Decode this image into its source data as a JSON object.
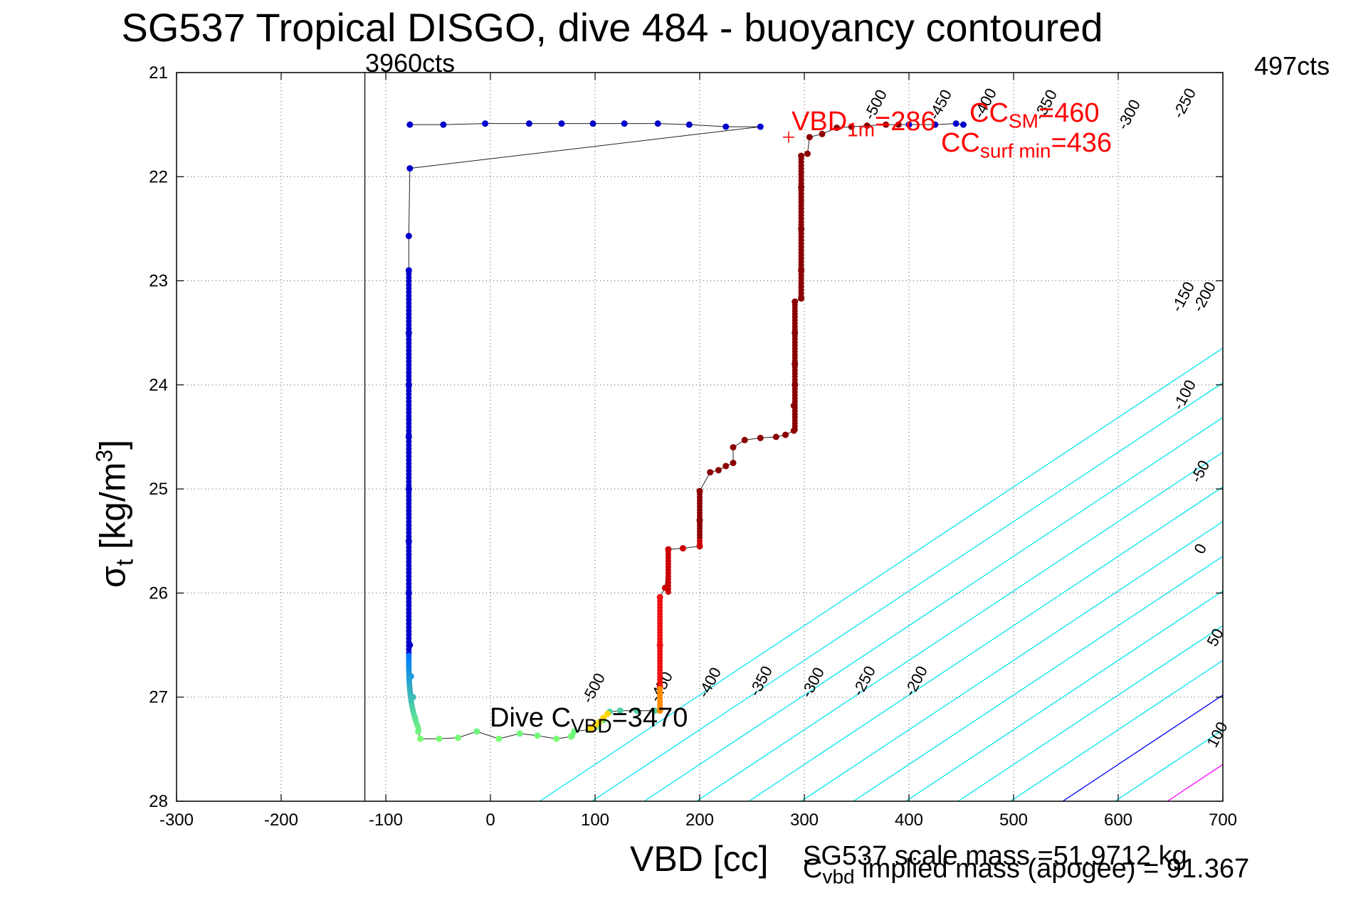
{
  "title": "SG537 Tropical DISGO, dive 484 - buoyancy contoured",
  "xlabel": "VBD [cc]",
  "ylabel": {
    "main": "σ",
    "sub": "t",
    "units_pre": " [kg/m",
    "units_sup": "3",
    "units_post": "]"
  },
  "notes": {
    "scale_mass": "SG537 scale mass =51.9712 kg",
    "implied_mass_pre": "C",
    "implied_mass_sub": "vbd",
    "implied_mass_post": " implied mass (apogee) = 91.367"
  },
  "cts_left": "3960cts",
  "cts_right": "497cts",
  "annotations": {
    "vbd1m_pre": "VBD",
    "vbd1m_sub": "1m",
    "vbd1m_post": "=286",
    "ccsm_pre": "CC",
    "ccsm_sub": "SM",
    "ccsm_post": "=460",
    "ccsurf_pre": "CC",
    "ccsurf_sub": "surf min",
    "ccsurf_post": "=436",
    "dive_pre": "Dive C",
    "dive_sub": "VBD",
    "dive_post": "=3470"
  },
  "colors": {
    "descent": "#0000cc",
    "contour": "#00e5ee",
    "zero_contour": "#0000ff",
    "pos_contour": "#ff00ff",
    "ascent": "#8b0000",
    "annotation": "#ff0000"
  },
  "chart_data": {
    "type": "scatter",
    "xlim": [
      -300,
      700
    ],
    "ylim": [
      21,
      28
    ],
    "y_reversed": true,
    "grid": true,
    "xticks": [
      -300,
      -200,
      -100,
      0,
      100,
      200,
      300,
      400,
      500,
      600,
      700
    ],
    "yticks": [
      21,
      22,
      23,
      24,
      25,
      26,
      27,
      28
    ],
    "vertical_line_x": -120,
    "vbd_1m_marker": [
      285,
      21.62
    ],
    "contours": [
      {
        "label": "-500",
        "x_at_28": 47,
        "x_at_21": null,
        "color": "contour"
      },
      {
        "label": "-450",
        "x_at_28": 97,
        "x_at_21": null,
        "color": "contour"
      },
      {
        "label": "-400",
        "x_at_28": 147,
        "x_at_21": null,
        "color": "contour"
      },
      {
        "label": "-350",
        "x_at_28": 197,
        "x_at_21": null,
        "color": "contour"
      },
      {
        "label": "-300",
        "x_at_28": 247,
        "x_at_21": null,
        "color": "contour"
      },
      {
        "label": "-250",
        "x_at_28": 297,
        "x_at_21": null,
        "color": "contour"
      },
      {
        "label": "-200",
        "x_at_28": 347,
        "x_at_21": null,
        "color": "contour"
      },
      {
        "label": "-150",
        "x_at_28": 397,
        "x_at_21": null,
        "color": "contour"
      },
      {
        "label": "-100",
        "x_at_28": 447,
        "x_at_21": null,
        "color": "contour"
      },
      {
        "label": "-50",
        "x_at_28": 497,
        "x_at_21": null,
        "color": "contour"
      },
      {
        "label": "0",
        "x_at_28": 547,
        "x_at_21": null,
        "color": "zero_contour"
      },
      {
        "label": "50",
        "x_at_28": 597,
        "x_at_21": null,
        "color": "contour"
      },
      {
        "label": "100",
        "x_at_28": 647,
        "x_at_21": null,
        "color": "pos_contour"
      }
    ],
    "contour_slope_cc_per_unit": 150,
    "descent": [
      [
        -77,
        21.5
      ],
      [
        -45,
        21.5
      ],
      [
        -5,
        21.49
      ],
      [
        37,
        21.49
      ],
      [
        68,
        21.49
      ],
      [
        98,
        21.49
      ],
      [
        128,
        21.49
      ],
      [
        160,
        21.49
      ],
      [
        190,
        21.5
      ],
      [
        225,
        21.52
      ],
      [
        258,
        21.52
      ],
      [
        -77,
        21.92
      ],
      [
        -78,
        22.57
      ],
      [
        -78,
        22.9
      ],
      [
        -78,
        23.5
      ],
      [
        -78,
        24.0
      ],
      [
        -78,
        24.5
      ],
      [
        -78,
        25.0
      ],
      [
        -78,
        25.5
      ],
      [
        -78,
        26.0
      ],
      [
        -77,
        26.5
      ],
      [
        -76,
        26.8
      ],
      [
        -74,
        27.0
      ],
      [
        -72,
        27.2
      ],
      [
        -69,
        27.33
      ],
      [
        -67,
        27.4
      ],
      [
        -49,
        27.4
      ],
      [
        -31,
        27.39
      ],
      [
        -13,
        27.33
      ],
      [
        8,
        27.4
      ],
      [
        28,
        27.35
      ],
      [
        45,
        27.37
      ],
      [
        63,
        27.4
      ],
      [
        77,
        27.38
      ],
      [
        78,
        27.37
      ],
      [
        80,
        27.33
      ],
      [
        95,
        27.31
      ],
      [
        102,
        27.28
      ],
      [
        108,
        27.22
      ],
      [
        114,
        27.14
      ],
      [
        124,
        27.13
      ],
      [
        140,
        27.13
      ],
      [
        157,
        27.13
      ]
    ],
    "ascent": [
      [
        162,
        27.13
      ],
      [
        162,
        26.9
      ],
      [
        162,
        26.5
      ],
      [
        162,
        26.04
      ],
      [
        167,
        25.95
      ],
      [
        170,
        25.58
      ],
      [
        184,
        25.57
      ],
      [
        200,
        25.55
      ],
      [
        200,
        25.3
      ],
      [
        200,
        25.02
      ],
      [
        210,
        24.84
      ],
      [
        218,
        24.82
      ],
      [
        225,
        24.78
      ],
      [
        232,
        24.75
      ],
      [
        232,
        24.6
      ],
      [
        243,
        24.53
      ],
      [
        258,
        24.51
      ],
      [
        273,
        24.5
      ],
      [
        282,
        24.48
      ],
      [
        290,
        24.44
      ],
      [
        290,
        24.2
      ],
      [
        291,
        24.0
      ],
      [
        291,
        23.8
      ],
      [
        291,
        23.5
      ],
      [
        291,
        23.2
      ],
      [
        297,
        23.17
      ],
      [
        297,
        22.9
      ],
      [
        297,
        22.5
      ],
      [
        297,
        22.1
      ],
      [
        297,
        21.8
      ],
      [
        303,
        21.78
      ],
      [
        305,
        21.62
      ],
      [
        317,
        21.59
      ],
      [
        331,
        21.53
      ],
      [
        345,
        21.52
      ],
      [
        360,
        21.51
      ],
      [
        378,
        21.5
      ],
      [
        390,
        21.5
      ]
    ],
    "ascent_tail": [
      [
        400,
        21.5
      ],
      [
        425,
        21.5
      ],
      [
        445,
        21.49
      ],
      [
        452,
        21.5
      ]
    ]
  }
}
